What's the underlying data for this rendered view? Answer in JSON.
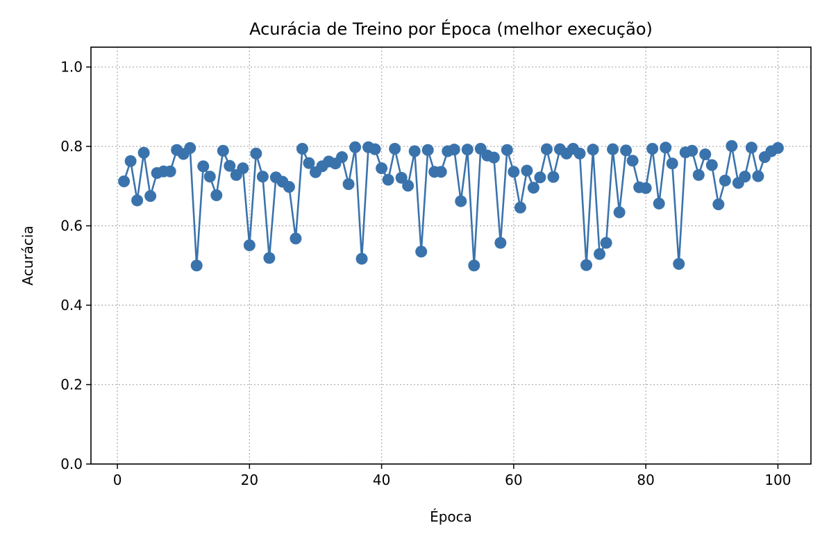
{
  "chart_data": {
    "type": "line",
    "title": "Acurácia de Treino por Época (melhor execução)",
    "xlabel": "Época",
    "ylabel": "Acurácia",
    "xlim": [
      -4,
      105
    ],
    "ylim": [
      0.0,
      1.05
    ],
    "xticks": [
      0,
      20,
      40,
      60,
      80,
      100
    ],
    "yticks": [
      0.0,
      0.2,
      0.4,
      0.6,
      0.8,
      1.0
    ],
    "xtick_labels": [
      "0",
      "20",
      "40",
      "60",
      "80",
      "100"
    ],
    "ytick_labels": [
      "0.0",
      "0.2",
      "0.4",
      "0.6",
      "0.8",
      "1.0"
    ],
    "grid": true,
    "marker": "circle",
    "color": "#3a73ac",
    "x": [
      1,
      2,
      3,
      4,
      5,
      6,
      7,
      8,
      9,
      10,
      11,
      12,
      13,
      14,
      15,
      16,
      17,
      18,
      19,
      20,
      21,
      22,
      23,
      24,
      25,
      26,
      27,
      28,
      29,
      30,
      31,
      32,
      33,
      34,
      35,
      36,
      37,
      38,
      39,
      40,
      41,
      42,
      43,
      44,
      45,
      46,
      47,
      48,
      49,
      50,
      51,
      52,
      53,
      54,
      55,
      56,
      57,
      58,
      59,
      60,
      61,
      62,
      63,
      64,
      65,
      66,
      67,
      68,
      69,
      70,
      71,
      72,
      73,
      74,
      75,
      76,
      77,
      78,
      79,
      80,
      81,
      82,
      83,
      84,
      85,
      86,
      87,
      88,
      89,
      90,
      91,
      92,
      93,
      94,
      95,
      96,
      97,
      98,
      99,
      100
    ],
    "series": [
      {
        "values": [
          0.712,
          0.763,
          0.664,
          0.784,
          0.675,
          0.733,
          0.737,
          0.737,
          0.791,
          0.781,
          0.796,
          0.5,
          0.75,
          0.724,
          0.677,
          0.789,
          0.751,
          0.728,
          0.745,
          0.551,
          0.782,
          0.724,
          0.519,
          0.722,
          0.711,
          0.698,
          0.568,
          0.794,
          0.758,
          0.735,
          0.75,
          0.762,
          0.757,
          0.773,
          0.705,
          0.798,
          0.517,
          0.798,
          0.793,
          0.745,
          0.716,
          0.794,
          0.721,
          0.701,
          0.788,
          0.535,
          0.791,
          0.736,
          0.736,
          0.788,
          0.792,
          0.662,
          0.792,
          0.5,
          0.794,
          0.777,
          0.772,
          0.557,
          0.791,
          0.736,
          0.646,
          0.739,
          0.696,
          0.722,
          0.793,
          0.723,
          0.793,
          0.782,
          0.794,
          0.782,
          0.501,
          0.792,
          0.529,
          0.557,
          0.793,
          0.634,
          0.79,
          0.764,
          0.697,
          0.695,
          0.794,
          0.656,
          0.797,
          0.757,
          0.504,
          0.785,
          0.789,
          0.728,
          0.78,
          0.753,
          0.654,
          0.714,
          0.801,
          0.708,
          0.724,
          0.797,
          0.725,
          0.773,
          0.788,
          0.796
        ]
      }
    ]
  }
}
